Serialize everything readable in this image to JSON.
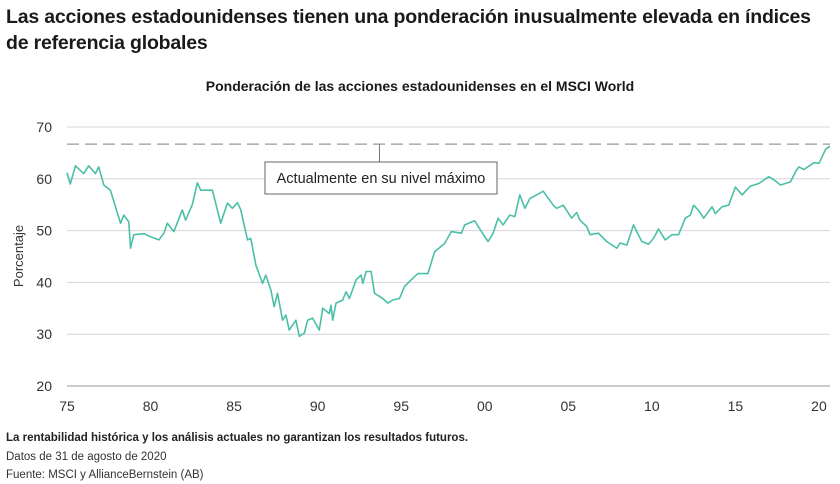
{
  "title": "Las acciones estadounidenses tienen una ponderación inusualmente elevada en índices de referencia globales",
  "footer": {
    "disclaimer": "La rentabilidad histórica y los análisis actuales no garantizan los resultados futuros.",
    "date_note": "Datos de 31 de agosto de 2020",
    "source": "Fuente: MSCI y AllianceBernstein (AB)"
  },
  "colors": {
    "line": "#4bbfa8",
    "grid": "#d6d6d6",
    "reference": "#999999"
  },
  "chart_data": {
    "type": "line",
    "title": "Ponderación de las acciones estadounidenses en el MSCI World",
    "xlabel": "",
    "ylabel": "Porcentaje",
    "xlim": [
      1975,
      2020.67
    ],
    "ylim": [
      20,
      70
    ],
    "x_ticks": [
      1975,
      1980,
      1985,
      1990,
      1995,
      2000,
      2005,
      2010,
      2015,
      2020
    ],
    "x_tick_labels": [
      "75",
      "80",
      "85",
      "90",
      "95",
      "00",
      "05",
      "10",
      "15",
      "20"
    ],
    "y_ticks": [
      20,
      30,
      40,
      50,
      60,
      70
    ],
    "y_tick_labels": [
      "20",
      "30",
      "40",
      "50",
      "60",
      "70"
    ],
    "grid": "horizontal",
    "reference_line": {
      "value": 66.7,
      "style": "dashed"
    },
    "annotation": {
      "text": "Actualmente en su nivel máximo",
      "x": 1993.7
    },
    "series": [
      {
        "x": [
          1975.0,
          1975.2,
          1975.5,
          1976.0,
          1976.3,
          1976.7,
          1976.9,
          1977.2,
          1977.6,
          1977.9,
          1978.2,
          1978.4,
          1978.7,
          1978.8,
          1979.0,
          1979.6,
          1980.0,
          1980.5,
          1980.8,
          1981.0,
          1981.4,
          1981.9,
          1982.1,
          1982.5,
          1982.8,
          1983.0,
          1983.7,
          1984.2,
          1984.6,
          1984.9,
          1985.2,
          1985.4,
          1985.8,
          1986.0,
          1986.3,
          1986.7,
          1986.9,
          1987.2,
          1987.4,
          1987.6,
          1987.9,
          1988.1,
          1988.3,
          1988.7,
          1988.9,
          1989.2,
          1989.4,
          1989.7,
          1990.1,
          1990.3,
          1990.7,
          1990.8,
          1990.9,
          1991.1,
          1991.5,
          1991.7,
          1991.9,
          1992.3,
          1992.6,
          1992.7,
          1992.9,
          1993.2,
          1993.4,
          1993.9,
          1994.2,
          1994.5,
          1994.9,
          1995.2,
          1995.6,
          1996.0,
          1996.6,
          1997.0,
          1997.6,
          1998.0,
          1998.6,
          1998.8,
          1999.4,
          1999.8,
          2000.2,
          2000.5,
          2000.8,
          2001.1,
          2001.5,
          2001.8,
          2002.1,
          2002.4,
          2002.7,
          2003.1,
          2003.5,
          2004.1,
          2004.3,
          2004.7,
          2005.2,
          2005.5,
          2005.7,
          2006.1,
          2006.3,
          2006.8,
          2007.3,
          2007.9,
          2008.1,
          2008.5,
          2008.9,
          2009.1,
          2009.4,
          2009.8,
          2010.1,
          2010.4,
          2010.8,
          2011.2,
          2011.6,
          2012.0,
          2012.3,
          2012.5,
          2012.8,
          2013.1,
          2013.6,
          2013.8,
          2014.2,
          2014.6,
          2015.0,
          2015.4,
          2015.9,
          2016.4,
          2017.0,
          2017.3,
          2017.7,
          2018.3,
          2018.6,
          2018.8,
          2019.1,
          2019.7,
          2020.0,
          2020.4,
          2020.66
        ],
        "y": [
          61.2,
          59.0,
          62.5,
          61.0,
          62.5,
          61.0,
          62.3,
          58.8,
          57.8,
          54.6,
          51.4,
          53.0,
          51.7,
          46.6,
          49.2,
          49.4,
          48.8,
          48.2,
          49.5,
          51.4,
          49.8,
          54.0,
          52.0,
          55.0,
          59.2,
          57.8,
          57.8,
          51.4,
          55.3,
          54.3,
          55.4,
          54.0,
          48.2,
          48.5,
          43.4,
          39.8,
          41.4,
          38.5,
          35.3,
          37.9,
          32.7,
          33.7,
          30.8,
          32.7,
          29.6,
          30.2,
          32.7,
          33.1,
          30.8,
          35.0,
          34.0,
          35.6,
          32.7,
          36.0,
          36.6,
          38.2,
          36.9,
          40.5,
          41.4,
          39.8,
          42.1,
          42.1,
          37.9,
          36.9,
          36.0,
          36.6,
          36.9,
          39.2,
          40.5,
          41.7,
          41.7,
          45.9,
          47.5,
          49.8,
          49.5,
          51.1,
          51.9,
          49.8,
          47.9,
          49.5,
          52.4,
          51.1,
          53.0,
          52.7,
          56.9,
          54.3,
          56.2,
          56.9,
          57.6,
          54.9,
          54.3,
          54.9,
          52.4,
          53.5,
          52.0,
          50.8,
          49.2,
          49.5,
          47.9,
          46.6,
          47.6,
          47.2,
          51.1,
          49.8,
          47.9,
          47.4,
          48.5,
          50.3,
          48.2,
          49.2,
          49.2,
          52.4,
          53.0,
          54.9,
          53.9,
          52.4,
          54.6,
          53.3,
          54.6,
          54.9,
          58.4,
          56.9,
          58.6,
          59.1,
          60.4,
          59.8,
          58.8,
          59.4,
          61.4,
          62.3,
          61.8,
          63.1,
          63.0,
          65.7,
          66.3
        ]
      }
    ]
  }
}
